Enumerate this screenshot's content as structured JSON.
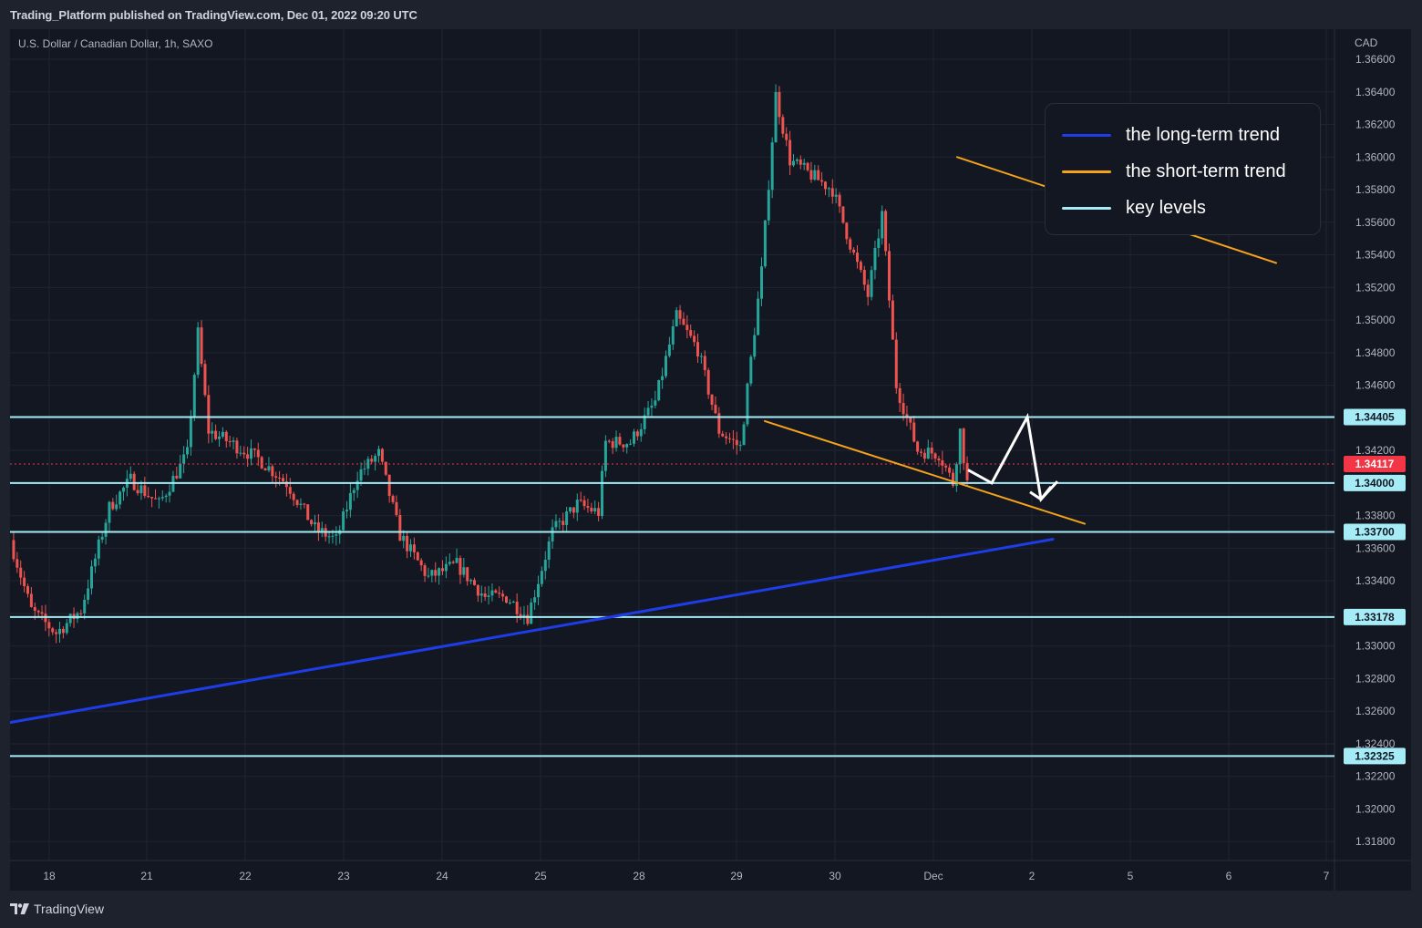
{
  "header": {
    "publish_info": "Trading_Platform published on TradingView.com, Dec 01, 2022 09:20 UTC"
  },
  "footer": {
    "brand": "TradingView",
    "logo_icon": "tradingview-logo-icon"
  },
  "chart_data": {
    "type": "candlestick",
    "title": "U.S. Dollar / Canadian Dollar, 1h, SAXO",
    "currency_label": "CAD",
    "y_ticks": [
      "1.31800",
      "1.32000",
      "1.32200",
      "1.32400",
      "1.32600",
      "1.32800",
      "1.33000",
      "1.33200",
      "1.33400",
      "1.33600",
      "1.33800",
      "1.34000",
      "1.34200",
      "1.34400",
      "1.34600",
      "1.34800",
      "1.35000",
      "1.35200",
      "1.35400",
      "1.35600",
      "1.35800",
      "1.36000",
      "1.36200",
      "1.36400",
      "1.36600"
    ],
    "x_ticks": [
      "18",
      "21",
      "22",
      "23",
      "24",
      "25",
      "28",
      "29",
      "30",
      "Dec",
      "2",
      "5",
      "6",
      "7"
    ],
    "ylim": [
      1.3168,
      1.3667
    ],
    "grid": true,
    "colors": {
      "up": "#26a69a",
      "down": "#ef5350",
      "long_term": "#1e3de8",
      "short_term": "#f5a31a",
      "key_level": "#a6ecf6",
      "last_price": "#f23645"
    },
    "last_price": "1.34117",
    "key_levels": [
      "1.34405",
      "1.34000",
      "1.33700",
      "1.33178",
      "1.32325"
    ],
    "legend": [
      {
        "label": "the long-term trend",
        "color": "#1e3de8"
      },
      {
        "label": "the short-term trend",
        "color": "#f5a31a"
      },
      {
        "label": "key levels",
        "color": "#a6ecf6"
      }
    ],
    "price_path": [
      [
        0,
        1.3365
      ],
      [
        6,
        1.3322
      ],
      [
        13,
        1.3308
      ],
      [
        20,
        1.3322
      ],
      [
        28,
        1.3385
      ],
      [
        34,
        1.3402
      ],
      [
        42,
        1.3387
      ],
      [
        50,
        1.3418
      ],
      [
        53,
        1.3492
      ],
      [
        56,
        1.3432
      ],
      [
        62,
        1.3425
      ],
      [
        70,
        1.3415
      ],
      [
        78,
        1.34
      ],
      [
        86,
        1.3372
      ],
      [
        92,
        1.3365
      ],
      [
        98,
        1.3405
      ],
      [
        104,
        1.3418
      ],
      [
        110,
        1.3368
      ],
      [
        118,
        1.3342
      ],
      [
        126,
        1.335
      ],
      [
        134,
        1.333
      ],
      [
        140,
        1.333
      ],
      [
        146,
        1.3318
      ],
      [
        153,
        1.337
      ],
      [
        160,
        1.3387
      ],
      [
        166,
        1.3382
      ],
      [
        168,
        1.3425
      ],
      [
        175,
        1.3425
      ],
      [
        182,
        1.345
      ],
      [
        188,
        1.3502
      ],
      [
        194,
        1.3482
      ],
      [
        200,
        1.3432
      ],
      [
        206,
        1.3422
      ],
      [
        212,
        1.353
      ],
      [
        216,
        1.3638
      ],
      [
        220,
        1.3598
      ],
      [
        232,
        1.358
      ],
      [
        238,
        1.354
      ],
      [
        242,
        1.3515
      ],
      [
        246,
        1.3565
      ],
      [
        250,
        1.346
      ],
      [
        256,
        1.342
      ],
      [
        262,
        1.3418
      ],
      [
        266,
        1.34
      ],
      [
        268,
        1.3432
      ],
      [
        270,
        1.34
      ]
    ],
    "total_bars": 270,
    "annotations": {
      "long_term_trendline": [
        [
          0,
          1.3252
        ],
        [
          1155,
          1.33655
        ]
      ],
      "short_term_upper": [
        [
          1050,
          1.36
        ],
        [
          1400,
          1.3535
        ]
      ],
      "short_term_lower": [
        [
          839,
          1.3438
        ],
        [
          1190,
          1.3375
        ]
      ],
      "projection_path": [
        [
          1062,
          1.3408
        ],
        [
          1088,
          1.34
        ],
        [
          1127,
          1.34405
        ],
        [
          1142,
          1.339
        ],
        [
          1160,
          1.3401
        ]
      ]
    }
  }
}
